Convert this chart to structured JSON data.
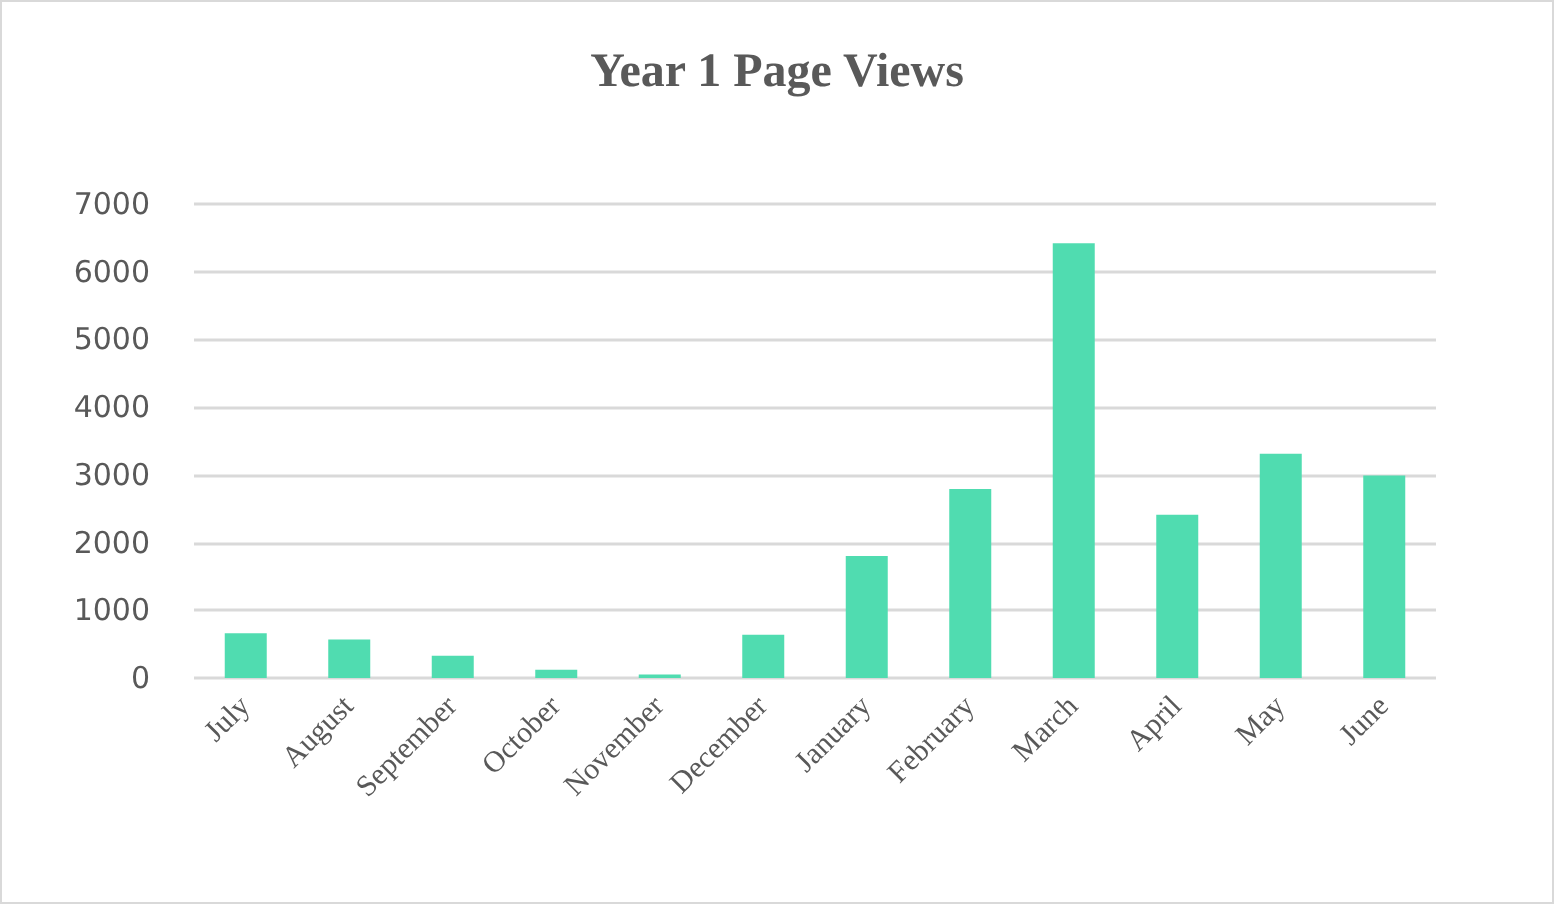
{
  "chart_data": {
    "type": "bar",
    "title": "Year 1 Page Views",
    "categories": [
      "July",
      "August",
      "September",
      "October",
      "November",
      "December",
      "January",
      "February",
      "March",
      "April",
      "May",
      "June"
    ],
    "values": [
      660,
      570,
      330,
      120,
      50,
      640,
      1800,
      2790,
      6420,
      2410,
      3310,
      2990
    ],
    "color": "#50dcb0",
    "ylim": [
      0,
      7000
    ],
    "yticks": [
      0,
      1000,
      2000,
      3000,
      4000,
      5000,
      6000,
      7000
    ],
    "grid": "y"
  }
}
